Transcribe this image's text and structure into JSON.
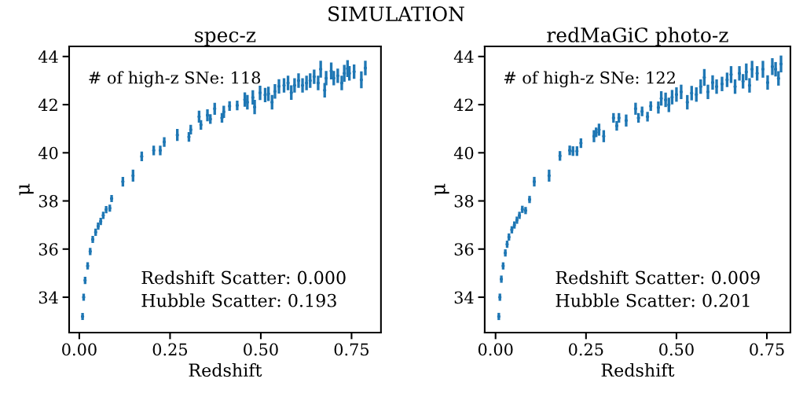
{
  "chart_data": [
    {
      "type": "scatter",
      "title": "spec-z",
      "xlabel": "Redshift",
      "ylabel": "μ",
      "marker": "circle",
      "grid": false,
      "annotations": [
        "SIMULATION",
        "# of high-z SNe: 118",
        "Redshift Scatter: 0.000",
        "Hubble Scatter: 0.193"
      ],
      "xlim": [
        -0.028,
        0.831
      ],
      "ylim": [
        32.53,
        44.42
      ],
      "xticks": [
        {
          "value": 0,
          "label": "0.00"
        },
        {
          "value": 0.25,
          "label": "0.25"
        },
        {
          "value": 0.5,
          "label": "0.50"
        },
        {
          "value": 0.75,
          "label": "0.75"
        }
      ],
      "yticks": [
        34,
        36,
        38,
        40,
        42,
        44
      ],
      "series": [
        {
          "color": "#1f77b4",
          "x": [
            0.009,
            0.012,
            0.016,
            0.023,
            0.03,
            0.037,
            0.045,
            0.052,
            0.059,
            0.066,
            0.074,
            0.084,
            0.089,
            0.12,
            0.148,
            0.172,
            0.205,
            0.223,
            0.234,
            0.27,
            0.302,
            0.307,
            0.33,
            0.335,
            0.353,
            0.361,
            0.373,
            0.393,
            0.398,
            0.414,
            0.435,
            0.456,
            0.463,
            0.478,
            0.483,
            0.498,
            0.512,
            0.521,
            0.531,
            0.539,
            0.55,
            0.564,
            0.575,
            0.584,
            0.593,
            0.604,
            0.615,
            0.626,
            0.636,
            0.647,
            0.658,
            0.665,
            0.676,
            0.68,
            0.694,
            0.701,
            0.712,
            0.723,
            0.73,
            0.739,
            0.744,
            0.757,
            0.777,
            0.788
          ],
          "values": [
            33.2,
            34.0,
            34.7,
            35.3,
            35.9,
            36.4,
            36.7,
            36.95,
            37.15,
            37.4,
            37.64,
            37.7,
            38.1,
            38.8,
            39.05,
            39.85,
            40.1,
            40.1,
            40.45,
            40.74,
            40.66,
            40.96,
            41.5,
            41.16,
            41.56,
            41.4,
            41.83,
            41.45,
            41.7,
            41.94,
            41.97,
            42.21,
            42.1,
            42.3,
            41.9,
            42.49,
            42.4,
            42.45,
            42.1,
            42.55,
            42.76,
            42.8,
            42.9,
            42.5,
            42.8,
            43.0,
            42.8,
            42.9,
            43.0,
            43.16,
            42.9,
            43.47,
            42.6,
            43.1,
            43.4,
            43.1,
            43.2,
            42.9,
            43.3,
            43.5,
            43.3,
            43.37,
            43.03,
            43.52
          ],
          "errors": [
            0.15,
            0.15,
            0.15,
            0.15,
            0.15,
            0.15,
            0.15,
            0.15,
            0.15,
            0.15,
            0.15,
            0.15,
            0.15,
            0.2,
            0.25,
            0.2,
            0.2,
            0.2,
            0.2,
            0.25,
            0.2,
            0.2,
            0.25,
            0.2,
            0.25,
            0.2,
            0.25,
            0.2,
            0.25,
            0.2,
            0.2,
            0.3,
            0.3,
            0.3,
            0.3,
            0.3,
            0.3,
            0.3,
            0.3,
            0.3,
            0.3,
            0.3,
            0.3,
            0.3,
            0.3,
            0.3,
            0.3,
            0.3,
            0.3,
            0.3,
            0.3,
            0.35,
            0.3,
            0.3,
            0.35,
            0.3,
            0.3,
            0.3,
            0.35,
            0.35,
            0.3,
            0.3,
            0.35,
            0.3
          ]
        }
      ]
    },
    {
      "type": "scatter",
      "title": "redMaGiC photo-z",
      "xlabel": "Redshift",
      "ylabel": "μ",
      "marker": "circle",
      "grid": false,
      "annotations": [
        "# of high-z SNe: 122",
        "Redshift Scatter: 0.009",
        "Hubble Scatter: 0.201"
      ],
      "xlim": [
        -0.03,
        0.815
      ],
      "ylim": [
        32.53,
        44.42
      ],
      "xticks": [
        {
          "value": 0,
          "label": "0.00"
        },
        {
          "value": 0.25,
          "label": "0.25"
        },
        {
          "value": 0.5,
          "label": "0.50"
        },
        {
          "value": 0.75,
          "label": "0.75"
        }
      ],
      "yticks": [
        34,
        36,
        38,
        40,
        42,
        44
      ],
      "series": [
        {
          "color": "#1f77b4",
          "x": [
            0.009,
            0.012,
            0.016,
            0.021,
            0.027,
            0.032,
            0.037,
            0.045,
            0.052,
            0.059,
            0.066,
            0.074,
            0.083,
            0.094,
            0.107,
            0.148,
            0.178,
            0.205,
            0.214,
            0.225,
            0.236,
            0.272,
            0.278,
            0.286,
            0.299,
            0.326,
            0.335,
            0.341,
            0.361,
            0.387,
            0.395,
            0.405,
            0.42,
            0.429,
            0.45,
            0.458,
            0.47,
            0.479,
            0.488,
            0.5,
            0.513,
            0.53,
            0.542,
            0.555,
            0.567,
            0.577,
            0.587,
            0.6,
            0.611,
            0.626,
            0.64,
            0.651,
            0.662,
            0.674,
            0.684,
            0.693,
            0.702,
            0.709,
            0.723,
            0.739,
            0.752,
            0.765,
            0.774,
            0.782,
            0.789
          ],
          "values": [
            33.2,
            34.0,
            34.75,
            35.3,
            35.84,
            36.2,
            36.5,
            36.8,
            37.0,
            37.2,
            37.4,
            37.65,
            37.6,
            38.06,
            38.8,
            39.05,
            39.87,
            40.1,
            40.07,
            40.07,
            40.4,
            40.69,
            40.85,
            40.96,
            40.69,
            41.45,
            41.12,
            41.45,
            41.34,
            41.83,
            41.45,
            41.72,
            41.5,
            41.94,
            41.88,
            42.26,
            42.2,
            41.99,
            42.31,
            42.42,
            42.53,
            42.1,
            42.48,
            42.42,
            42.75,
            43.13,
            42.53,
            42.92,
            42.75,
            42.86,
            43.03,
            43.25,
            42.75,
            43.3,
            42.97,
            43.36,
            42.8,
            43.47,
            43.3,
            43.47,
            42.92,
            43.58,
            43.47,
            43.09,
            43.69
          ],
          "errors": [
            0.15,
            0.15,
            0.15,
            0.15,
            0.15,
            0.15,
            0.15,
            0.15,
            0.15,
            0.15,
            0.15,
            0.15,
            0.15,
            0.15,
            0.2,
            0.25,
            0.2,
            0.2,
            0.2,
            0.2,
            0.2,
            0.25,
            0.2,
            0.25,
            0.25,
            0.2,
            0.2,
            0.2,
            0.25,
            0.25,
            0.2,
            0.2,
            0.2,
            0.2,
            0.25,
            0.3,
            0.3,
            0.3,
            0.3,
            0.3,
            0.3,
            0.3,
            0.3,
            0.3,
            0.3,
            0.35,
            0.3,
            0.3,
            0.3,
            0.3,
            0.3,
            0.35,
            0.3,
            0.3,
            0.3,
            0.35,
            0.3,
            0.35,
            0.3,
            0.35,
            0.3,
            0.35,
            0.3,
            0.3,
            0.35
          ]
        }
      ]
    }
  ]
}
